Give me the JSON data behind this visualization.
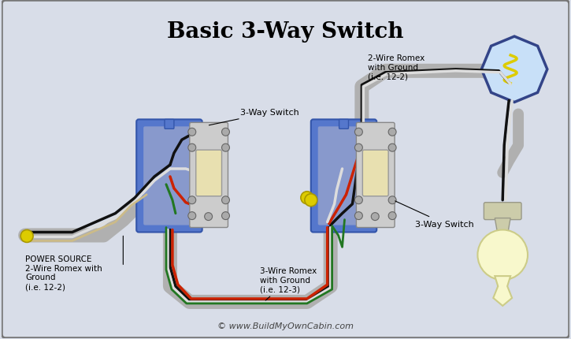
{
  "title": "Basic 3-Way Switch",
  "background_color": "#d8dde8",
  "border_color": "#888888",
  "wire_colors": {
    "black": "#111111",
    "red": "#cc2200",
    "white": "#dddddd",
    "green": "#227722",
    "yellow": "#ddcc00",
    "gray": "#aaaaaa",
    "bare": "#ccbb88"
  },
  "labels": {
    "power_source": "POWER SOURCE\n2-Wire Romex with\nGround\n(i.e. 12-2)",
    "romex_2wire": "2-Wire Romex\nwith Ground\n(i.e. 12-2)",
    "romex_3wire": "3-Wire Romex\nwith Ground\n(i.e. 12-3)",
    "switch1": "3-Way Switch",
    "switch2": "3-Way Switch",
    "copyright": "© www.BuildMyOwnCabin.com"
  },
  "box1_color": "#5577cc",
  "box2_color": "#5577cc",
  "switch_body": "#d8d8d8",
  "switch_toggle": "#d4c890",
  "conduit_color": "#b0b0b0"
}
